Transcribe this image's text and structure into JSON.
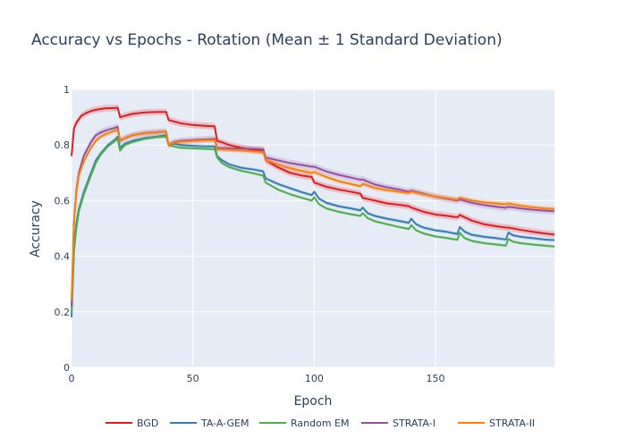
{
  "chart_data": {
    "type": "line",
    "title": "Accuracy vs Epochs - Rotation (Mean ± 1 Standard Deviation)",
    "xlabel": "Epoch",
    "ylabel": "Accuracy",
    "xlim": [
      0,
      199
    ],
    "ylim": [
      0,
      1
    ],
    "x_ticks": [
      0,
      50,
      100,
      150
    ],
    "y_ticks": [
      0,
      0.2,
      0.4,
      0.6,
      0.8,
      1
    ],
    "y_tick_labels": [
      "0",
      "0.2",
      "0.4",
      "0.6",
      "0.8",
      "1"
    ],
    "grid": true,
    "legend_position": "bottom",
    "colors": {
      "BGD": "#e41a1c",
      "TA-A-GEM": "#377eb8",
      "Random EM": "#4daf4a",
      "STRATA-I": "#984ea3",
      "STRATA-II": "#ff7f00",
      "plot_bg": "#e5ecf6",
      "grid": "#ffffff"
    },
    "series": [
      {
        "name": "BGD",
        "x": [
          0,
          1,
          2,
          4,
          6,
          8,
          10,
          14,
          18,
          19,
          20,
          22,
          25,
          30,
          35,
          39,
          40,
          45,
          50,
          55,
          59,
          60,
          62,
          65,
          70,
          75,
          79,
          80,
          85,
          90,
          95,
          99,
          100,
          105,
          110,
          115,
          119,
          120,
          125,
          130,
          135,
          139,
          140,
          145,
          150,
          155,
          159,
          160,
          165,
          170,
          175,
          179,
          180,
          185,
          190,
          195,
          199
        ],
        "values": [
          0.76,
          0.86,
          0.88,
          0.905,
          0.915,
          0.922,
          0.927,
          0.932,
          0.933,
          0.935,
          0.9,
          0.905,
          0.912,
          0.917,
          0.919,
          0.919,
          0.89,
          0.878,
          0.872,
          0.869,
          0.867,
          0.815,
          0.81,
          0.8,
          0.79,
          0.782,
          0.778,
          0.745,
          0.72,
          0.7,
          0.69,
          0.685,
          0.665,
          0.65,
          0.64,
          0.632,
          0.625,
          0.61,
          0.6,
          0.59,
          0.585,
          0.58,
          0.575,
          0.56,
          0.55,
          0.545,
          0.54,
          0.548,
          0.528,
          0.515,
          0.508,
          0.503,
          0.503,
          0.495,
          0.488,
          0.482,
          0.478
        ],
        "std": 0.012
      },
      {
        "name": "TA-A-GEM",
        "x": [
          0,
          1,
          2,
          3,
          5,
          8,
          10,
          12,
          15,
          18,
          19,
          20,
          22,
          25,
          30,
          35,
          39,
          40,
          42,
          45,
          50,
          55,
          59,
          60,
          62,
          65,
          70,
          75,
          79,
          80,
          85,
          90,
          95,
          99,
          100,
          102,
          105,
          110,
          115,
          119,
          120,
          122,
          125,
          130,
          135,
          139,
          140,
          142,
          145,
          150,
          155,
          159,
          160,
          162,
          165,
          170,
          175,
          179,
          180,
          182,
          185,
          190,
          195,
          199
        ],
        "values": [
          0.18,
          0.42,
          0.52,
          0.57,
          0.63,
          0.7,
          0.745,
          0.77,
          0.8,
          0.82,
          0.83,
          0.79,
          0.805,
          0.815,
          0.825,
          0.83,
          0.835,
          0.8,
          0.805,
          0.8,
          0.797,
          0.795,
          0.795,
          0.76,
          0.745,
          0.73,
          0.718,
          0.712,
          0.705,
          0.68,
          0.66,
          0.645,
          0.63,
          0.62,
          0.632,
          0.607,
          0.592,
          0.58,
          0.572,
          0.565,
          0.575,
          0.555,
          0.545,
          0.535,
          0.527,
          0.52,
          0.535,
          0.515,
          0.503,
          0.493,
          0.487,
          0.48,
          0.505,
          0.488,
          0.477,
          0.47,
          0.465,
          0.46,
          0.485,
          0.475,
          0.47,
          0.465,
          0.46,
          0.458
        ],
        "std": 0.006
      },
      {
        "name": "Random EM",
        "x": [
          0,
          1,
          2,
          3,
          5,
          8,
          10,
          12,
          15,
          18,
          19,
          20,
          22,
          25,
          30,
          35,
          39,
          40,
          42,
          45,
          50,
          55,
          59,
          60,
          62,
          65,
          70,
          75,
          79,
          80,
          85,
          90,
          95,
          99,
          100,
          102,
          105,
          110,
          115,
          119,
          120,
          122,
          125,
          130,
          135,
          139,
          140,
          142,
          145,
          150,
          155,
          159,
          160,
          162,
          165,
          170,
          175,
          179,
          180,
          182,
          185,
          190,
          195,
          199
        ],
        "values": [
          0.2,
          0.42,
          0.5,
          0.56,
          0.62,
          0.69,
          0.735,
          0.765,
          0.795,
          0.815,
          0.822,
          0.78,
          0.8,
          0.81,
          0.822,
          0.828,
          0.83,
          0.8,
          0.795,
          0.79,
          0.788,
          0.786,
          0.785,
          0.755,
          0.735,
          0.72,
          0.707,
          0.698,
          0.69,
          0.665,
          0.64,
          0.623,
          0.61,
          0.6,
          0.612,
          0.587,
          0.572,
          0.56,
          0.551,
          0.545,
          0.555,
          0.537,
          0.526,
          0.515,
          0.505,
          0.498,
          0.512,
          0.493,
          0.482,
          0.471,
          0.465,
          0.459,
          0.484,
          0.465,
          0.455,
          0.447,
          0.442,
          0.438,
          0.462,
          0.452,
          0.447,
          0.442,
          0.438,
          0.435
        ],
        "std": 0.005
      },
      {
        "name": "STRATA-I",
        "x": [
          0,
          1,
          2,
          3,
          5,
          8,
          10,
          12,
          15,
          18,
          19,
          20,
          22,
          25,
          30,
          35,
          39,
          40,
          42,
          45,
          50,
          55,
          59,
          60,
          65,
          70,
          75,
          79,
          80,
          85,
          90,
          95,
          99,
          100,
          105,
          110,
          115,
          119,
          120,
          125,
          130,
          135,
          139,
          140,
          145,
          150,
          155,
          159,
          160,
          165,
          170,
          175,
          179,
          180,
          185,
          190,
          195,
          199
        ],
        "values": [
          0.22,
          0.52,
          0.64,
          0.7,
          0.76,
          0.81,
          0.835,
          0.845,
          0.855,
          0.862,
          0.866,
          0.815,
          0.825,
          0.835,
          0.843,
          0.846,
          0.848,
          0.8,
          0.81,
          0.815,
          0.818,
          0.82,
          0.822,
          0.79,
          0.788,
          0.787,
          0.786,
          0.785,
          0.755,
          0.745,
          0.735,
          0.728,
          0.722,
          0.722,
          0.705,
          0.693,
          0.683,
          0.675,
          0.676,
          0.658,
          0.648,
          0.64,
          0.632,
          0.636,
          0.625,
          0.614,
          0.606,
          0.6,
          0.604,
          0.592,
          0.584,
          0.578,
          0.574,
          0.578,
          0.572,
          0.567,
          0.564,
          0.562
        ],
        "std": 0.012
      },
      {
        "name": "STRATA-II",
        "x": [
          0,
          1,
          2,
          3,
          5,
          8,
          10,
          12,
          15,
          18,
          19,
          20,
          22,
          25,
          30,
          35,
          39,
          40,
          42,
          45,
          50,
          55,
          59,
          60,
          65,
          70,
          75,
          79,
          80,
          85,
          90,
          95,
          99,
          100,
          105,
          110,
          115,
          119,
          120,
          125,
          130,
          135,
          139,
          140,
          145,
          150,
          155,
          159,
          160,
          165,
          170,
          175,
          179,
          180,
          185,
          190,
          195,
          199
        ],
        "values": [
          0.24,
          0.52,
          0.63,
          0.69,
          0.74,
          0.79,
          0.815,
          0.83,
          0.842,
          0.852,
          0.855,
          0.815,
          0.825,
          0.835,
          0.842,
          0.845,
          0.848,
          0.8,
          0.808,
          0.812,
          0.815,
          0.817,
          0.818,
          0.785,
          0.783,
          0.78,
          0.777,
          0.775,
          0.745,
          0.73,
          0.717,
          0.707,
          0.7,
          0.703,
          0.685,
          0.67,
          0.66,
          0.652,
          0.66,
          0.645,
          0.638,
          0.632,
          0.628,
          0.633,
          0.623,
          0.615,
          0.608,
          0.603,
          0.61,
          0.6,
          0.594,
          0.59,
          0.587,
          0.59,
          0.582,
          0.576,
          0.572,
          0.57
        ],
        "std": 0.009
      }
    ]
  }
}
